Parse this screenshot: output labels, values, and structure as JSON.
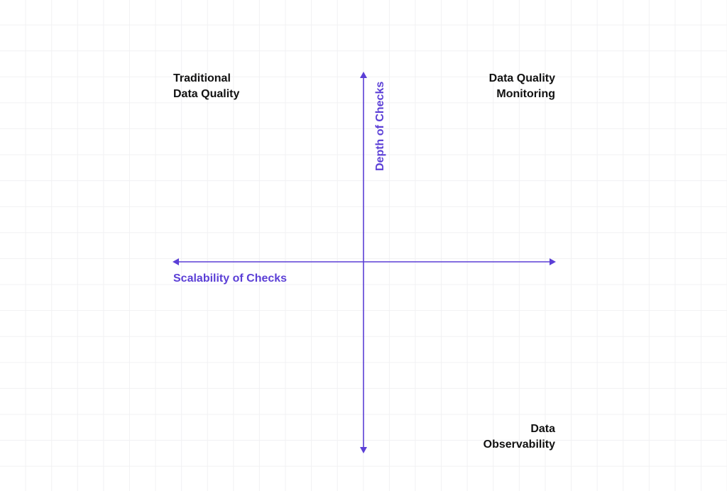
{
  "colors": {
    "axis": "#5b3fd6",
    "label_text": "#111111",
    "grid": "#f1f1f3",
    "background": "#ffffff"
  },
  "diagram": {
    "quadrants": {
      "top_left": {
        "line1": "Traditional",
        "line2": "Data Quality"
      },
      "top_right": {
        "line1": "Data Quality",
        "line2": "Monitoring"
      },
      "bottom_right": {
        "line1": "Data",
        "line2": "Observability"
      }
    },
    "x_axis_label": "Scalability of Checks",
    "y_axis_label": "Depth of Checks"
  }
}
